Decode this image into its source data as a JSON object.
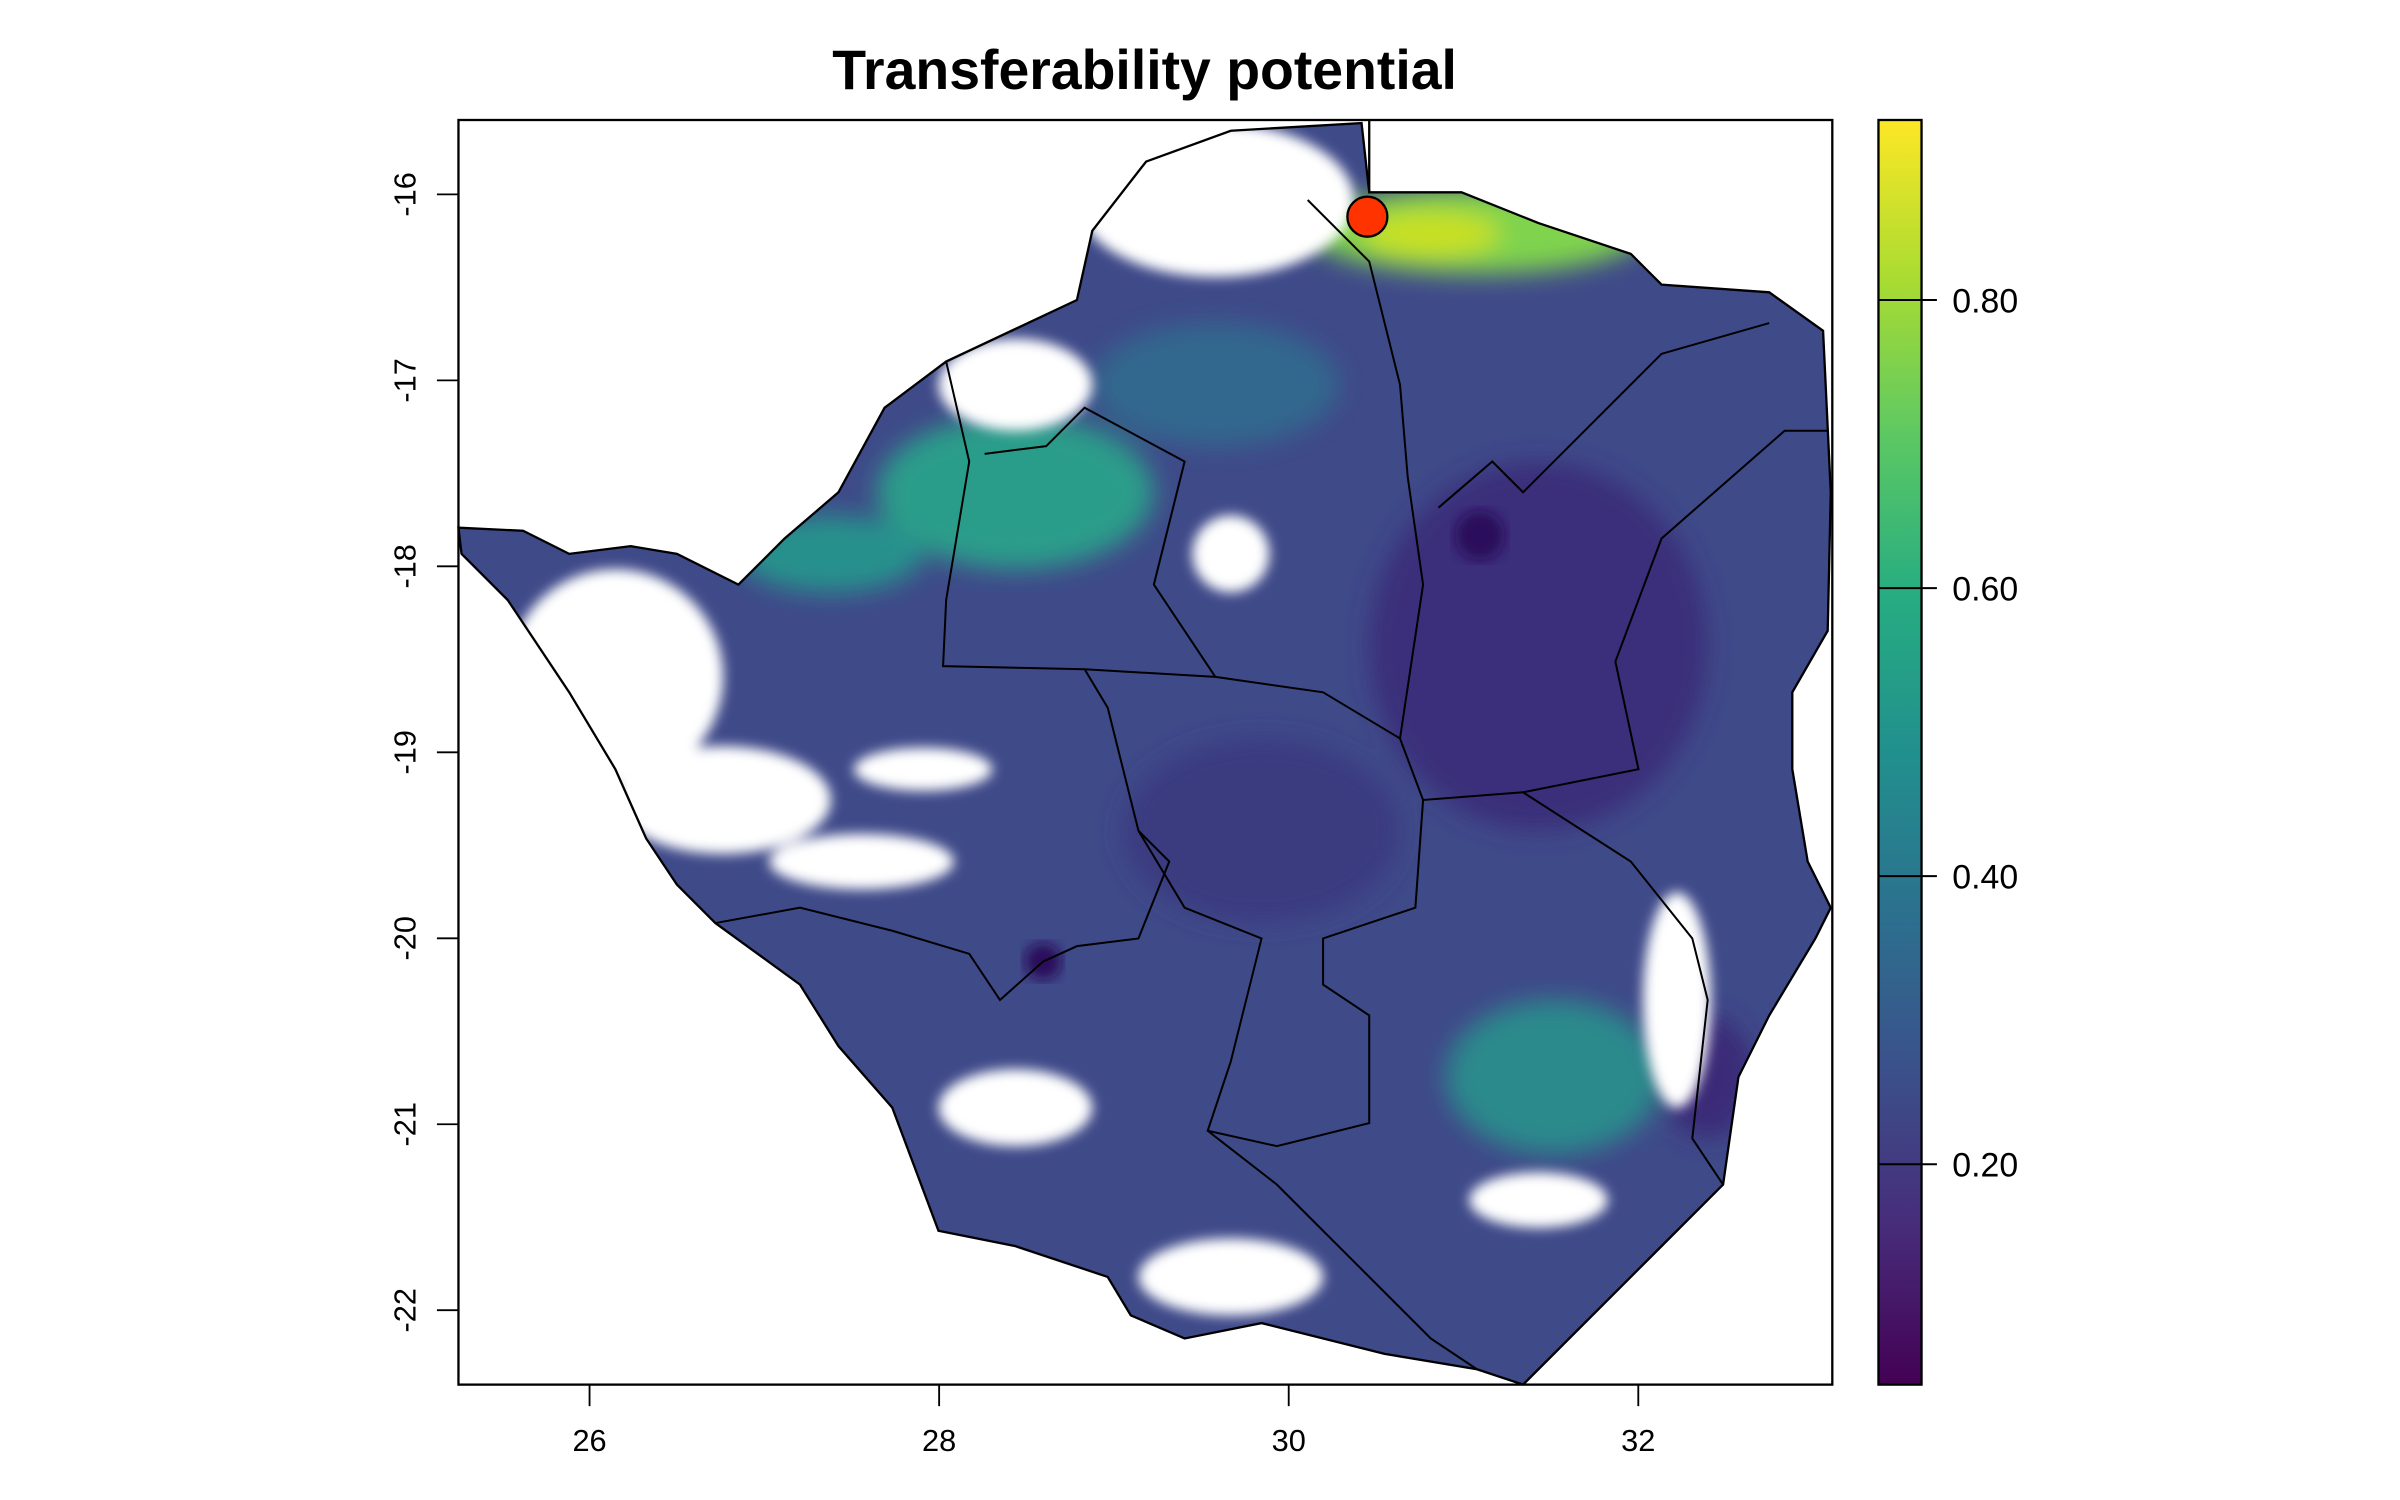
{
  "chart_data": {
    "type": "heatmap",
    "title": "Transferability potential",
    "xlabel": "",
    "ylabel": "",
    "xlim": [
      25.25,
      33.11
    ],
    "ylim": [
      -22.4,
      -15.6
    ],
    "x_ticks": [
      26,
      28,
      30,
      32
    ],
    "x_tick_labels": [
      "26",
      "28",
      "30",
      "32"
    ],
    "y_ticks": [
      -16,
      -17,
      -18,
      -19,
      -20,
      -21,
      -22
    ],
    "y_tick_labels": [
      "-16",
      "-17",
      "-18",
      "-19",
      "-20",
      "-21",
      "-22"
    ],
    "colorbar": {
      "range": [
        0.047,
        0.925
      ],
      "ticks": [
        0.2,
        0.4,
        0.6,
        0.8
      ],
      "tick_labels": [
        "0.20",
        "0.40",
        "0.60",
        "0.80"
      ],
      "palette": "viridis",
      "colors": [
        "#440154",
        "#472c7a",
        "#3b518b",
        "#2c718e",
        "#21908d",
        "#27ad81",
        "#5cc863",
        "#aadc32",
        "#fde725"
      ]
    },
    "highlight_point": {
      "lon": 30.45,
      "lat": -16.12,
      "color": "#ff3300"
    },
    "grid": false,
    "legend": "right"
  }
}
